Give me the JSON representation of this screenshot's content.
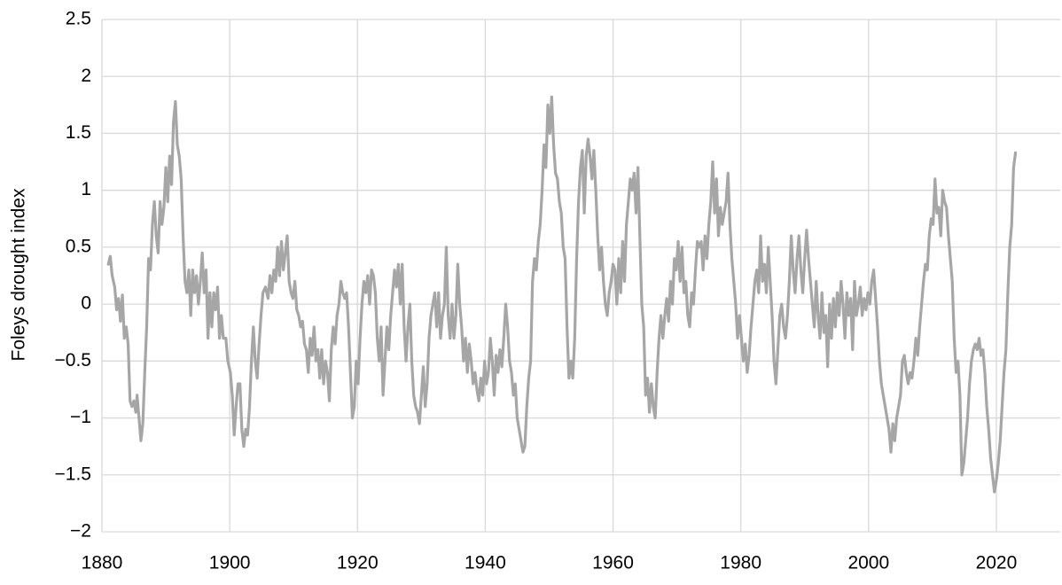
{
  "chart_data": {
    "type": "line",
    "y_label": "Foleys drought index",
    "color": "#a6a6a6",
    "grid": true,
    "xlim": [
      1880,
      2030
    ],
    "xticks": [
      1880,
      1900,
      1920,
      1940,
      1960,
      1980,
      2000,
      2020
    ],
    "ylim": [
      -2,
      2.5
    ],
    "yticks": [
      {
        "value": -2,
        "label": "−2"
      },
      {
        "value": -1.5,
        "label": "−1.5"
      },
      {
        "value": -1,
        "label": "−1"
      },
      {
        "value": -0.5,
        "label": "−0.5"
      },
      0,
      0.5,
      1,
      1.5,
      2,
      2.5
    ],
    "x": [
      1881,
      1881.3,
      1881.6,
      1882,
      1882.3,
      1882.6,
      1882.9,
      1883.2,
      1883.5,
      1883.8,
      1884.1,
      1884.4,
      1884.7,
      1885,
      1885.3,
      1885.5,
      1885.8,
      1886.1,
      1886.4,
      1886.7,
      1887,
      1887.3,
      1887.6,
      1887.9,
      1888.2,
      1888.5,
      1888.8,
      1889.1,
      1889.4,
      1889.7,
      1890,
      1890.3,
      1890.6,
      1890.9,
      1891.2,
      1891.5,
      1891.8,
      1892.1,
      1892.4,
      1892.7,
      1893,
      1893.3,
      1893.6,
      1893.9,
      1894.2,
      1894.5,
      1894.8,
      1895.1,
      1895.4,
      1895.7,
      1896,
      1896.3,
      1896.6,
      1896.9,
      1897.2,
      1897.5,
      1897.8,
      1898.1,
      1898.4,
      1898.7,
      1899,
      1899.4,
      1899.7,
      1900.1,
      1900.4,
      1900.7,
      1901,
      1901.3,
      1901.6,
      1901.9,
      1902.2,
      1902.5,
      1902.8,
      1903.1,
      1903.4,
      1903.7,
      1904,
      1904.3,
      1904.6,
      1904.9,
      1905.2,
      1905.6,
      1906,
      1906.3,
      1906.6,
      1906.9,
      1907.2,
      1907.5,
      1907.8,
      1908.1,
      1908.4,
      1908.7,
      1909,
      1909.3,
      1909.6,
      1909.9,
      1910.2,
      1910.5,
      1910.8,
      1911.1,
      1911.4,
      1911.7,
      1912,
      1912.3,
      1912.6,
      1912.9,
      1913.2,
      1913.5,
      1913.8,
      1914.1,
      1914.4,
      1914.7,
      1915,
      1915.3,
      1915.6,
      1915.9,
      1916.2,
      1916.5,
      1916.8,
      1917.1,
      1917.4,
      1917.7,
      1918,
      1918.3,
      1918.6,
      1918.9,
      1919.2,
      1919.5,
      1919.8,
      1920.1,
      1920.4,
      1920.7,
      1921,
      1921.3,
      1921.6,
      1921.9,
      1922.2,
      1922.5,
      1922.8,
      1923.1,
      1923.4,
      1923.7,
      1924,
      1924.3,
      1924.6,
      1924.9,
      1925.2,
      1925.5,
      1925.8,
      1926.1,
      1926.4,
      1926.7,
      1927,
      1927.3,
      1927.6,
      1927.9,
      1928.2,
      1928.5,
      1928.8,
      1929.1,
      1929.4,
      1929.7,
      1930,
      1930.3,
      1930.6,
      1930.9,
      1931.2,
      1931.5,
      1931.8,
      1932.1,
      1932.4,
      1932.7,
      1933,
      1933.3,
      1933.6,
      1933.9,
      1934.2,
      1934.5,
      1934.8,
      1935.1,
      1935.4,
      1935.7,
      1936,
      1936.3,
      1936.6,
      1936.9,
      1937.2,
      1937.5,
      1937.8,
      1938.1,
      1938.4,
      1938.7,
      1939,
      1939.3,
      1939.6,
      1939.9,
      1940.2,
      1940.5,
      1940.8,
      1941.1,
      1941.4,
      1941.7,
      1942,
      1942.3,
      1942.6,
      1942.9,
      1943.2,
      1943.5,
      1943.8,
      1944.1,
      1944.4,
      1944.7,
      1945,
      1945.3,
      1945.6,
      1945.9,
      1946.2,
      1946.5,
      1946.8,
      1947.1,
      1947.4,
      1947.7,
      1948,
      1948.3,
      1948.6,
      1948.9,
      1949.2,
      1949.5,
      1949.8,
      1950.1,
      1950.4,
      1950.7,
      1951,
      1951.3,
      1951.6,
      1951.9,
      1952.2,
      1952.5,
      1952.8,
      1953.1,
      1953.4,
      1953.7,
      1954,
      1954.3,
      1954.6,
      1954.9,
      1955.2,
      1955.5,
      1955.8,
      1956.1,
      1956.4,
      1956.7,
      1957,
      1957.3,
      1957.6,
      1957.9,
      1958.2,
      1958.5,
      1958.8,
      1959.1,
      1959.4,
      1959.7,
      1960,
      1960.3,
      1960.6,
      1960.9,
      1961.2,
      1961.5,
      1961.8,
      1962.1,
      1962.4,
      1962.7,
      1963,
      1963.3,
      1963.6,
      1963.9,
      1964.2,
      1964.5,
      1964.8,
      1965.1,
      1965.4,
      1965.7,
      1966,
      1966.3,
      1966.6,
      1966.9,
      1967.2,
      1967.5,
      1967.8,
      1968.1,
      1968.4,
      1968.7,
      1969,
      1969.3,
      1969.6,
      1969.9,
      1970.2,
      1970.5,
      1970.8,
      1971.1,
      1971.4,
      1971.7,
      1972,
      1972.3,
      1972.6,
      1972.9,
      1973.2,
      1973.5,
      1973.8,
      1974.1,
      1974.4,
      1974.7,
      1975,
      1975.3,
      1975.6,
      1975.9,
      1976.2,
      1976.5,
      1976.8,
      1977.1,
      1977.4,
      1977.7,
      1978,
      1978.3,
      1978.6,
      1978.9,
      1979.2,
      1979.5,
      1979.8,
      1980.1,
      1980.4,
      1980.7,
      1981,
      1981.3,
      1981.6,
      1981.9,
      1982.2,
      1982.5,
      1982.8,
      1983.1,
      1983.4,
      1983.7,
      1984,
      1984.3,
      1984.6,
      1984.9,
      1985.2,
      1985.5,
      1985.8,
      1986.1,
      1986.4,
      1986.7,
      1987,
      1987.3,
      1987.6,
      1987.9,
      1988.2,
      1988.5,
      1988.8,
      1989.1,
      1989.4,
      1989.7,
      1990,
      1990.3,
      1990.6,
      1990.9,
      1991.2,
      1991.5,
      1991.8,
      1992.1,
      1992.4,
      1992.7,
      1993,
      1993.3,
      1993.6,
      1993.9,
      1994.2,
      1994.5,
      1994.8,
      1995.1,
      1995.4,
      1995.7,
      1996,
      1996.3,
      1996.6,
      1996.9,
      1997.2,
      1997.5,
      1997.8,
      1998.1,
      1998.4,
      1998.7,
      1999,
      1999.3,
      1999.6,
      1999.9,
      2000.2,
      2000.5,
      2000.8,
      2001.1,
      2001.4,
      2001.7,
      2002,
      2002.3,
      2002.6,
      2002.9,
      2003.2,
      2003.5,
      2003.8,
      2004.1,
      2004.4,
      2004.7,
      2005,
      2005.3,
      2005.6,
      2005.9,
      2006.2,
      2006.5,
      2006.8,
      2007.1,
      2007.4,
      2007.7,
      2008,
      2008.3,
      2008.6,
      2008.9,
      2009.2,
      2009.5,
      2009.8,
      2010.1,
      2010.4,
      2010.7,
      2011,
      2011.3,
      2011.6,
      2011.9,
      2012.2,
      2012.5,
      2012.8,
      2013.1,
      2013.4,
      2013.7,
      2014,
      2014.3,
      2014.6,
      2014.9,
      2015.2,
      2015.5,
      2015.8,
      2016.1,
      2016.4,
      2016.7,
      2017,
      2017.3,
      2017.6,
      2017.9,
      2018.2,
      2018.5,
      2018.8,
      2019.1,
      2019.4,
      2019.7,
      2020,
      2020.3,
      2020.6,
      2020.9,
      2021.2,
      2021.5,
      2021.8,
      2022.1,
      2022.4,
      2022.7,
      2023
    ],
    "values": [
      0.35,
      0.42,
      0.25,
      0.15,
      -0.05,
      0.05,
      -0.15,
      0.08,
      -0.3,
      -0.2,
      -0.35,
      -0.85,
      -0.9,
      -0.85,
      -0.95,
      -0.8,
      -1.0,
      -1.2,
      -1.05,
      -0.6,
      -0.2,
      0.4,
      0.3,
      0.7,
      0.9,
      0.6,
      0.45,
      0.9,
      0.7,
      0.85,
      1.2,
      0.9,
      1.3,
      1.05,
      1.6,
      1.78,
      1.4,
      1.3,
      1.1,
      0.6,
      0.2,
      0.1,
      0.3,
      -0.1,
      0.3,
      0.1,
      0.25,
      0,
      0.2,
      0.45,
      0.1,
      0.3,
      -0.3,
      0.1,
      -0.2,
      0.1,
      -0.05,
      0.15,
      -0.3,
      -0.1,
      -0.3,
      -0.3,
      -0.5,
      -0.6,
      -0.8,
      -1.15,
      -0.9,
      -0.7,
      -0.7,
      -1.1,
      -1.25,
      -1.1,
      -1.15,
      -0.9,
      -0.5,
      -0.2,
      -0.5,
      -0.65,
      -0.35,
      -0.1,
      0.1,
      0.15,
      0.05,
      0.25,
      0.1,
      0.3,
      0.2,
      0.5,
      0.25,
      0.55,
      0.3,
      0.45,
      0.6,
      0.2,
      0.1,
      0.05,
      0.2,
      -0.05,
      -0.1,
      -0.2,
      -0.15,
      -0.35,
      -0.4,
      -0.6,
      -0.3,
      -0.45,
      -0.2,
      -0.5,
      -0.4,
      -0.65,
      -0.4,
      -0.7,
      -0.5,
      -0.6,
      -0.85,
      -0.4,
      -0.2,
      -0.35,
      -0.1,
      0,
      0.2,
      0.1,
      0.05,
      0.1,
      -0.2,
      -0.6,
      -1.0,
      -0.9,
      -0.5,
      -0.7,
      -0.3,
      0,
      0.2,
      0.1,
      0.25,
      0,
      0.3,
      0.25,
      0.1,
      -0.3,
      -0.5,
      -0.2,
      -0.8,
      -0.5,
      -0.2,
      -0.4,
      -0.1,
      0.1,
      0.3,
      0.15,
      0.35,
      0,
      0.35,
      -0.2,
      -0.5,
      -0.2,
      0,
      -0.5,
      -0.8,
      -0.9,
      -0.95,
      -1.05,
      -0.8,
      -0.55,
      -0.9,
      -0.7,
      -0.3,
      -0.1,
      0,
      0.1,
      -0.2,
      0.1,
      -0.3,
      -0.1,
      0,
      0.5,
      -0.1,
      -0.3,
      0,
      -0.3,
      -0.1,
      0.35,
      0,
      -0.2,
      -0.5,
      -0.3,
      -0.6,
      -0.35,
      -0.5,
      -0.7,
      -0.6,
      -0.75,
      -0.85,
      -0.65,
      -0.8,
      -0.5,
      -0.7,
      -0.6,
      -0.3,
      -0.5,
      -0.8,
      -0.45,
      -0.6,
      -0.4,
      -0.55,
      -0.3,
      0,
      -0.2,
      -0.5,
      -0.6,
      -0.8,
      -0.7,
      -1.0,
      -1.1,
      -1.2,
      -1.3,
      -1.25,
      -0.9,
      -0.65,
      -0.5,
      0.2,
      0.4,
      0.3,
      0.55,
      0.7,
      1.0,
      1.4,
      1.2,
      1.75,
      1.5,
      1.82,
      1.4,
      1.15,
      1.1,
      0.9,
      0.8,
      0.5,
      0.4,
      -0.2,
      -0.65,
      -0.5,
      -0.65,
      -0.3,
      0.4,
      0.9,
      1.2,
      1.35,
      0.8,
      1.3,
      1.45,
      1.3,
      1.1,
      1.35,
      1.0,
      0.6,
      0.3,
      0.5,
      0.2,
      0,
      -0.1,
      0.1,
      0.2,
      0.35,
      0.3,
      0,
      0.4,
      0.1,
      0.55,
      0.2,
      0.7,
      0.9,
      1.1,
      1.0,
      1.15,
      0.8,
      1.2,
      0.6,
      0,
      -0.2,
      -0.8,
      -0.65,
      -0.95,
      -0.7,
      -0.9,
      -1.0,
      -0.6,
      -0.3,
      -0.1,
      -0.3,
      -0.1,
      0.05,
      -0.15,
      0.2,
      0,
      0.4,
      0.3,
      0.55,
      0.2,
      0.5,
      0.1,
      0.2,
      -0.1,
      -0.2,
      0.1,
      0,
      0.3,
      0.55,
      0.5,
      0.55,
      0.3,
      0.6,
      0.4,
      0.7,
      0.9,
      1.25,
      0.8,
      1.1,
      0.6,
      0.85,
      0.7,
      0.8,
      0.9,
      1.15,
      0.7,
      0.4,
      0.2,
      0,
      -0.3,
      -0.1,
      -0.3,
      -0.5,
      -0.35,
      -0.6,
      -0.45,
      -0.2,
      0,
      0.2,
      0.3,
      0.1,
      0.6,
      0.2,
      0.35,
      0.1,
      0.5,
      0.2,
      -0.1,
      -0.5,
      -0.7,
      -0.4,
      -0.1,
      0,
      -0.2,
      -0.3,
      -0.1,
      0.2,
      0.6,
      0.3,
      0.1,
      0.4,
      0.6,
      0.3,
      0.1,
      0.4,
      0.65,
      0.4,
      0.2,
      0,
      -0.2,
      0.2,
      -0.1,
      -0.3,
      0.1,
      -0.25,
      -0.1,
      -0.55,
      0,
      -0.3,
      0.05,
      -0.2,
      0.1,
      -0.1,
      0.2,
      0,
      -0.3,
      0.1,
      -0.1,
      0.05,
      -0.4,
      0.2,
      -0.1,
      0,
      0.15,
      -0.1,
      0.05,
      -0.05,
      0.1,
      0,
      0.2,
      0.3,
      0.05,
      -0.2,
      -0.5,
      -0.7,
      -0.8,
      -0.9,
      -1.0,
      -1.1,
      -1.3,
      -1.05,
      -1.2,
      -1.0,
      -0.9,
      -0.8,
      -0.5,
      -0.45,
      -0.6,
      -0.7,
      -0.6,
      -0.65,
      -0.5,
      -0.3,
      -0.45,
      -0.2,
      0,
      0.2,
      0.35,
      0.3,
      0.6,
      0.75,
      0.7,
      1.1,
      0.8,
      0.85,
      0.6,
      1.0,
      0.9,
      0.85,
      0.6,
      0.4,
      0.2,
      -0.3,
      -0.6,
      -0.5,
      -0.8,
      -1.5,
      -1.4,
      -1.2,
      -1.0,
      -0.7,
      -0.5,
      -0.4,
      -0.35,
      -0.4,
      -0.3,
      -0.45,
      -0.4,
      -0.6,
      -0.9,
      -1.1,
      -1.35,
      -1.5,
      -1.65,
      -1.55,
      -1.4,
      -1.2,
      -0.9,
      -0.6,
      -0.4,
      0.1,
      0.5,
      0.7,
      1.2,
      1.33
    ]
  }
}
